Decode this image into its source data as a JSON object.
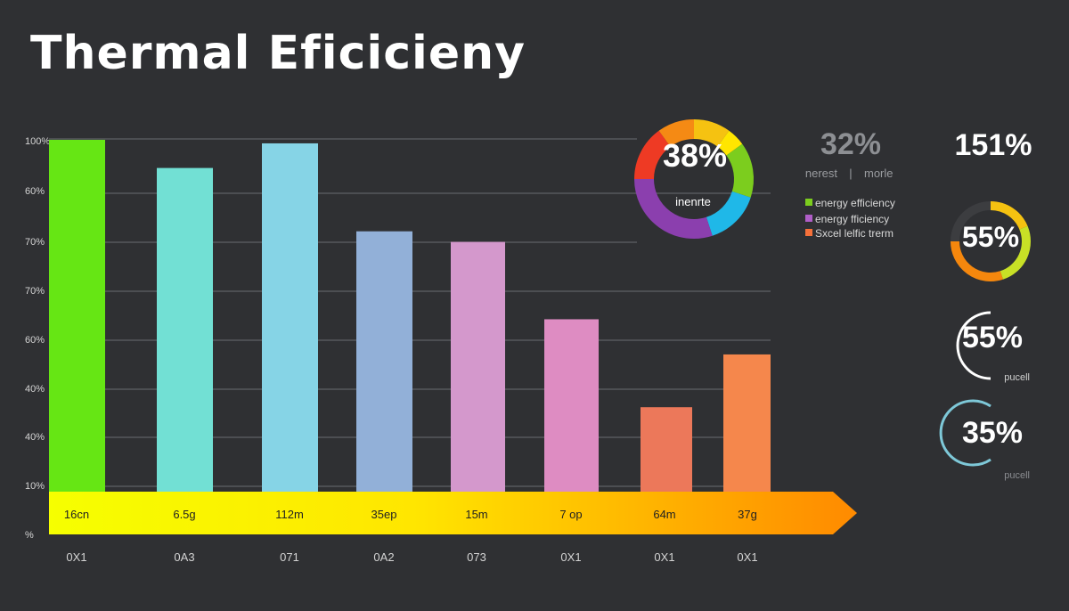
{
  "title": "Thermal Eficicieny",
  "chart_data": {
    "type": "bar",
    "title": "Thermal Eficicieny",
    "y_tick_labels": [
      "100%",
      "60%",
      "70%",
      "70%",
      "60%",
      "40%",
      "40%",
      "10%",
      "%"
    ],
    "categories": [
      "0X1",
      "0A3",
      "071",
      "0A2",
      "073",
      "0X1",
      "0X1",
      "0X1"
    ],
    "bar_labels": [
      "16cn",
      "6.5g",
      "112m",
      "35ep",
      "15m",
      "7 op",
      "64m",
      "37g"
    ],
    "values": [
      100,
      92,
      99,
      74,
      71,
      49,
      24,
      39
    ],
    "value_scale": "percent of chart height (estimated)",
    "bar_colors": [
      "#66e614",
      "#72e0d4",
      "#86d4e6",
      "#92b0d8",
      "#d498cc",
      "#de8cc2",
      "#ec785a",
      "#f5874c"
    ],
    "grid": true
  },
  "ring_main": {
    "value": "38%",
    "label": "inenrte",
    "segments": [
      {
        "color": "#f5c211",
        "share": 0.1
      },
      {
        "color": "#ffe600",
        "share": 0.05
      },
      {
        "color": "#7ccd1e",
        "share": 0.15
      },
      {
        "color": "#1fb8e8",
        "share": 0.15
      },
      {
        "color": "#8b3fae",
        "share": 0.3
      },
      {
        "color": "#ee3a24",
        "share": 0.15
      },
      {
        "color": "#f58a14",
        "share": 0.1
      }
    ]
  },
  "stat_top": {
    "value": "32%",
    "sub_left": "nerest",
    "sub_sep": "|",
    "sub_right": "morle"
  },
  "legend": [
    {
      "label": "energy efficiency",
      "color": "#7ccd1e"
    },
    {
      "label": "energy fficiency",
      "color": "#b05ec8"
    },
    {
      "label": "Sxcel lelfic trerm",
      "color": "#f5703a"
    }
  ],
  "side_stats": [
    {
      "value": "151%"
    },
    {
      "value": "55%",
      "fill": 0.75,
      "colors": [
        "#f5c211",
        "#c8e026",
        "#f5870d"
      ]
    },
    {
      "value": "55%",
      "caption": "pucell"
    },
    {
      "value": "35%",
      "caption": "pucell"
    }
  ]
}
